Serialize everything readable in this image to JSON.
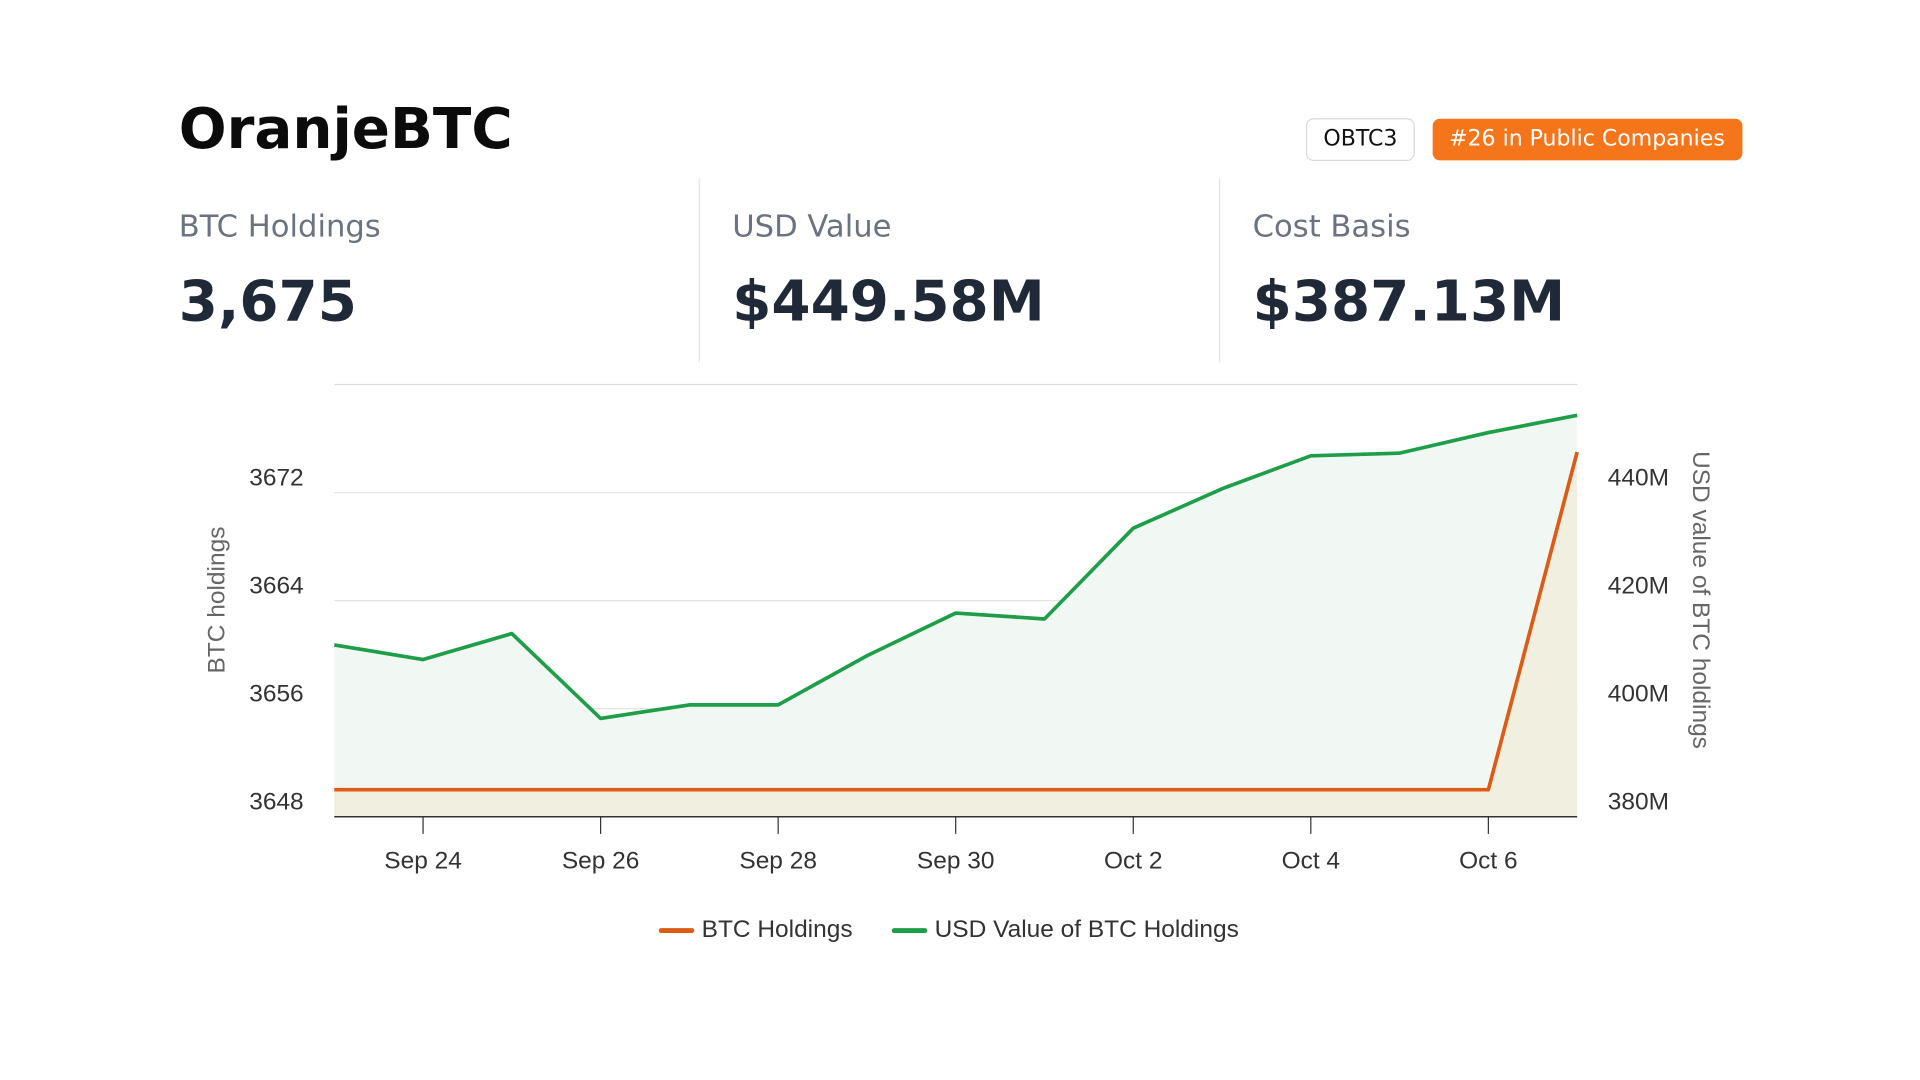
{
  "header": {
    "title": "OranjeBTC",
    "ticker": "OBTC3",
    "rank": "#26 in Public Companies"
  },
  "stats": [
    {
      "label": "BTC Holdings",
      "value": "3,675"
    },
    {
      "label": "USD Value",
      "value": "$449.58M"
    },
    {
      "label": "Cost Basis",
      "value": "$387.13M"
    }
  ],
  "chart_data": {
    "type": "line",
    "x": [
      null,
      "Sep 24",
      null,
      "Sep 26",
      null,
      "Sep 28",
      null,
      "Sep 30",
      null,
      "Oct 2",
      null,
      "Oct 4",
      null,
      "Oct 6",
      null
    ],
    "y_label": "BTC holdings",
    "y2_label": "USD value of BTC holdings",
    "ylim": [
      3648,
      3680
    ],
    "yticks": [
      3648,
      3656,
      3664,
      3672
    ],
    "y2lim": [
      380,
      460
    ],
    "y2ticks": [
      {
        "value": 380,
        "label": "380M"
      },
      {
        "value": 400,
        "label": "400M"
      },
      {
        "value": 420,
        "label": "420M"
      },
      {
        "value": 440,
        "label": "440M"
      }
    ],
    "grid": true,
    "legend": "bottom",
    "series": [
      {
        "name": "BTC Holdings",
        "color": "#dd5b14",
        "area_color": "#f1efdf",
        "values": [
          3650,
          3650,
          3650,
          3650,
          3650,
          3650,
          3650,
          3650,
          3650,
          3650,
          3650,
          3650,
          3650,
          3650,
          3675
        ]
      },
      {
        "name": "USD Value of BTC Holdings",
        "color": "#1f9e4a",
        "area_color": "#f1f8f3",
        "axis": "y2",
        "values": [
          411.8,
          409.1,
          413.9,
          398.2,
          400.7,
          400.7,
          409.8,
          417.7,
          416.6,
          433.4,
          440.7,
          446.8,
          447.3,
          451.1,
          454.3
        ]
      }
    ]
  }
}
